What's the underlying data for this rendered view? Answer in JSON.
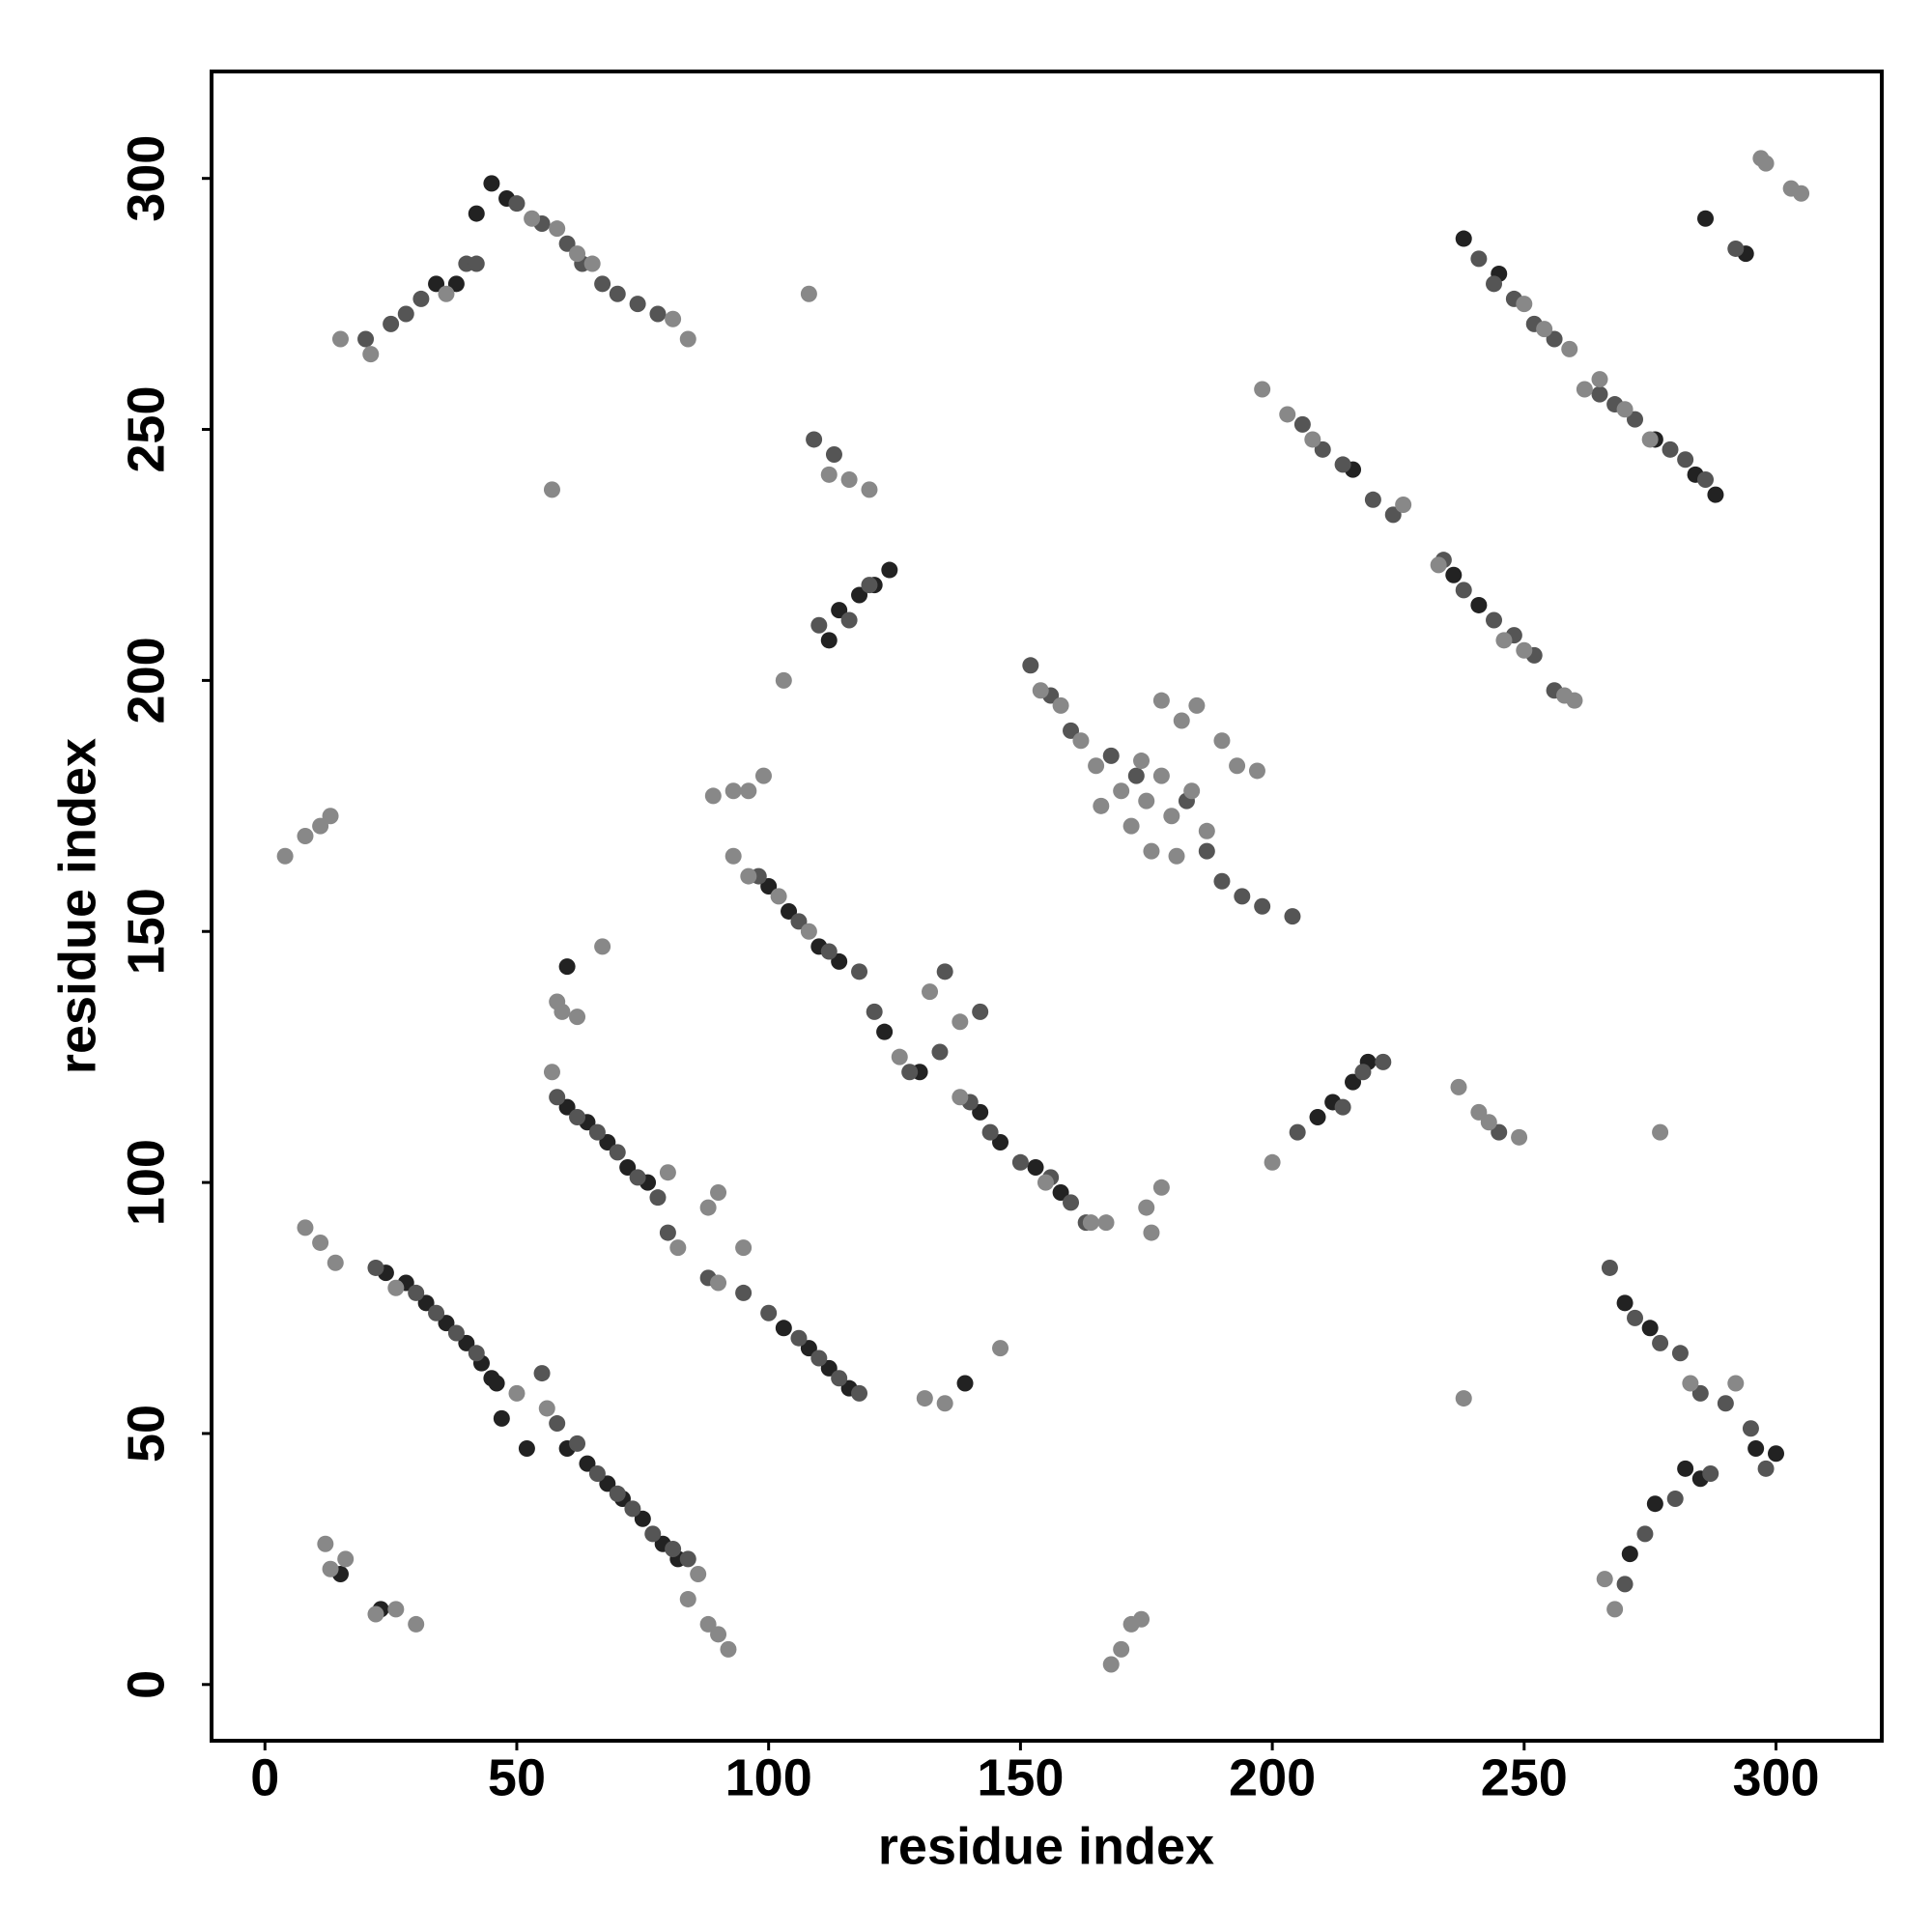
{
  "chart_data": {
    "type": "scatter",
    "xlabel": "residue index",
    "ylabel": "residue index",
    "xlim": [
      -10.6,
      321
    ],
    "ylim": [
      -11.2,
      321.3
    ],
    "xticks": [
      0,
      50,
      100,
      150,
      200,
      250,
      300
    ],
    "yticks": [
      0,
      50,
      100,
      150,
      200,
      250,
      300
    ],
    "grid": false,
    "series": [
      {
        "color": "#222222",
        "x": [
          24,
          28,
          32,
          36,
          40,
          43,
          45,
          47,
          52,
          60,
          64,
          68,
          71,
          75,
          79,
          82,
          60,
          64,
          68,
          72,
          76,
          100,
          104,
          110,
          114,
          123,
          130,
          142,
          146,
          153,
          158,
          103,
          108,
          112,
          116,
          112,
          114,
          118,
          121,
          124,
          209,
          212,
          216,
          219,
          42,
          45,
          48,
          34,
          38,
          238,
          245,
          284,
          288,
          276,
          216,
          236,
          241,
          270,
          275,
          282,
          285,
          296,
          300,
          271,
          276,
          286,
          294,
          15,
          23,
          139,
          46,
          60
        ],
        "values": [
          82,
          80,
          76,
          72,
          68,
          64,
          61,
          53,
          47,
          47,
          44,
          40,
          37,
          33,
          28,
          25,
          115,
          112,
          108,
          103,
          100,
          159,
          154,
          147,
          144,
          130,
          122,
          114,
          108,
          103,
          98,
          71,
          67,
          63,
          59,
          208,
          214,
          217,
          219,
          222,
          113,
          116,
          120,
          124,
          293,
          299,
          296,
          279,
          279,
          288,
          281,
          241,
          237,
          248,
          242,
          221,
          215,
          76,
          71,
          43,
          41,
          47,
          46,
          26,
          36,
          292,
          285,
          22,
          15,
          60,
          60,
          143
        ]
      },
      {
        "color": "#555555",
        "x": [
          22,
          30,
          34,
          38,
          42,
          55,
          58,
          62,
          66,
          70,
          73,
          77,
          81,
          84,
          58,
          62,
          66,
          70,
          74,
          78,
          80,
          98,
          106,
          112,
          118,
          121,
          128,
          140,
          144,
          150,
          156,
          160,
          163,
          88,
          95,
          100,
          106,
          110,
          114,
          118,
          152,
          156,
          160,
          168,
          187,
          190,
          194,
          198,
          204,
          173,
          183,
          206,
          210,
          214,
          220,
          224,
          234,
          238,
          244,
          248,
          252,
          256,
          241,
          244,
          248,
          252,
          256,
          265,
          268,
          272,
          279,
          282,
          286,
          20,
          25,
          28,
          31,
          40,
          50,
          55,
          60,
          63,
          67,
          70,
          74,
          78,
          110,
          116,
          120,
          205,
          214,
          218,
          222,
          267,
          272,
          277,
          281,
          285,
          290,
          295,
          298,
          270,
          274,
          280,
          287,
          109,
          113,
          42,
          134,
          142,
          135,
          245,
          292
        ],
        "values": [
          83,
          78,
          74,
          70,
          66,
          62,
          52,
          48,
          42,
          38,
          35,
          30,
          27,
          25,
          117,
          113,
          110,
          106,
          101,
          97,
          90,
          161,
          152,
          146,
          142,
          134,
          122,
          116,
          110,
          104,
          101,
          96,
          92,
          81,
          78,
          74,
          69,
          65,
          61,
          58,
          203,
          197,
          190,
          185,
          166,
          160,
          157,
          155,
          153,
          181,
          176,
          251,
          246,
          243,
          236,
          233,
          224,
          218,
          212,
          209,
          205,
          198,
          284,
          279,
          276,
          271,
          268,
          257,
          255,
          252,
          246,
          244,
          240,
          268,
          271,
          273,
          276,
          283,
          295,
          291,
          287,
          283,
          279,
          277,
          275,
          273,
          211,
          212,
          219,
          110,
          115,
          122,
          124,
          83,
          73,
          68,
          66,
          58,
          56,
          51,
          43,
          20,
          30,
          37,
          42,
          248,
          245,
          283,
          126,
          134,
          142,
          110,
          286
        ]
      },
      {
        "color": "#888888",
        "x": [
          26,
          50,
          56,
          86,
          57,
          80,
          82,
          93,
          96,
          102,
          108,
          126,
          138,
          155,
          154,
          158,
          162,
          165,
          170,
          175,
          178,
          180,
          184,
          187,
          176,
          181,
          172,
          185,
          190,
          193,
          197,
          178,
          182,
          166,
          174,
          198,
          203,
          208,
          226,
          233,
          246,
          250,
          258,
          260,
          250,
          254,
          259,
          262,
          265,
          270,
          275,
          15,
          21,
          36,
          53,
          58,
          62,
          65,
          81,
          84,
          4,
          8,
          11,
          13,
          8,
          11,
          14,
          12,
          13,
          16,
          22,
          26,
          30,
          84,
          88,
          90,
          92,
          88,
          90,
          89,
          93,
          96,
          99,
          103,
          57,
          108,
          112,
          116,
          120,
          58,
          62,
          59,
          67,
          131,
          135,
          146,
          132,
          138,
          164,
          167,
          175,
          178,
          176,
          168,
          170,
          172,
          174,
          237,
          241,
          243,
          249,
          238,
          277,
          297,
          298,
          303,
          305,
          200,
          95,
          90,
          268,
          266,
          283,
          292
        ],
        "values": [
          79,
          58,
          55,
          22,
          122,
          102,
          87,
          165,
          161,
          157,
          150,
          125,
          117,
          100,
          198,
          195,
          188,
          183,
          178,
          176,
          181,
          173,
          178,
          170,
          166,
          165,
          171,
          195,
          188,
          183,
          182,
          196,
          192,
          175,
          184,
          258,
          253,
          248,
          235,
          223,
          208,
          206,
          197,
          196,
          275,
          270,
          266,
          258,
          260,
          254,
          248,
          268,
          265,
          277,
          292,
          290,
          285,
          283,
          272,
          268,
          165,
          169,
          171,
          173,
          91,
          88,
          84,
          28,
          23,
          25,
          14,
          15,
          12,
          17,
          12,
          10,
          7,
          95,
          98,
          177,
          178,
          178,
          181,
          200,
          238,
          277,
          241,
          240,
          238,
          136,
          133,
          134,
          147,
          57,
          56,
          67,
          138,
          132,
          92,
          92,
          95,
          99,
          90,
          4,
          7,
          12,
          13,
          119,
          114,
          112,
          109,
          57,
          110,
          304,
          303,
          298,
          297,
          104,
          87,
          80,
          15,
          21,
          60,
          60
        ]
      }
    ]
  }
}
